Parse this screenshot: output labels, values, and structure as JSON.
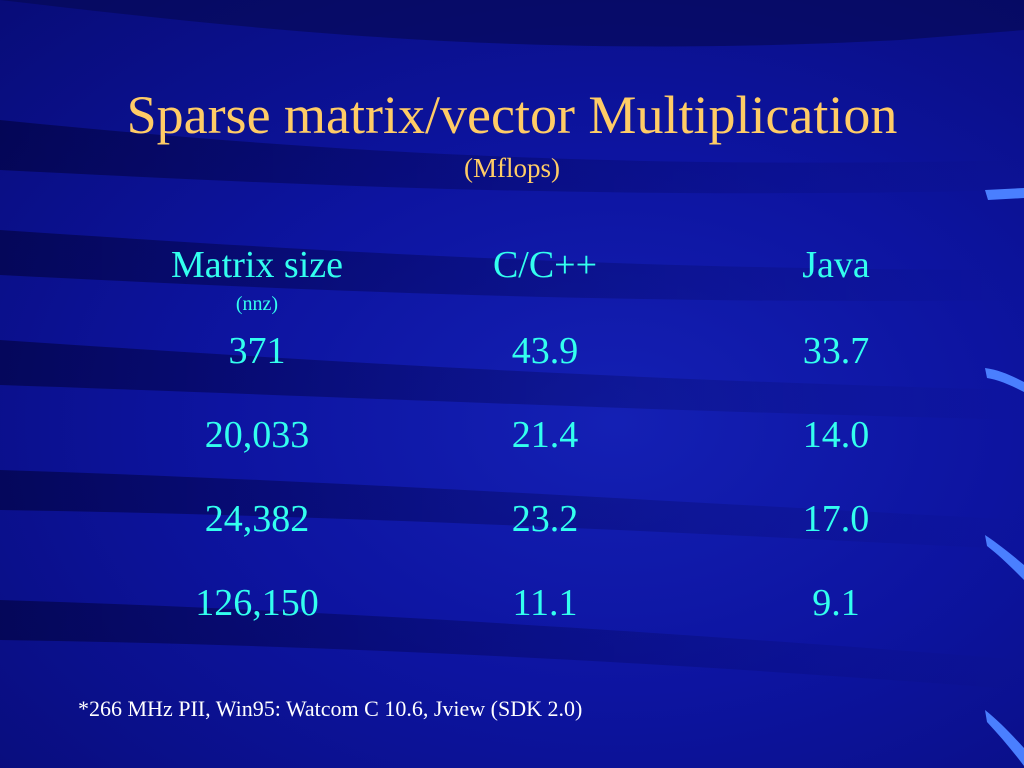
{
  "slide": {
    "title": "Sparse matrix/vector Multiplication",
    "subtitle": "(Mflops)",
    "columns": [
      {
        "header": "Matrix size",
        "subheader": "(nnz)"
      },
      {
        "header": "C/C++",
        "subheader": ""
      },
      {
        "header": "Java",
        "subheader": ""
      }
    ],
    "rows": [
      [
        "371",
        "43.9",
        "33.7"
      ],
      [
        "20,033",
        "21.4",
        "14.0"
      ],
      [
        "24,382",
        "23.2",
        "17.0"
      ],
      [
        "126,150",
        "11.1",
        "9.1"
      ]
    ],
    "footnote": "*266 MHz PII, Win95: Watcom C 10.6, Jview (SDK 2.0)"
  },
  "colors": {
    "background": "#0a0f82",
    "title": "#ffcc66",
    "table_text": "#33ffee",
    "footnote": "#ffffff"
  }
}
